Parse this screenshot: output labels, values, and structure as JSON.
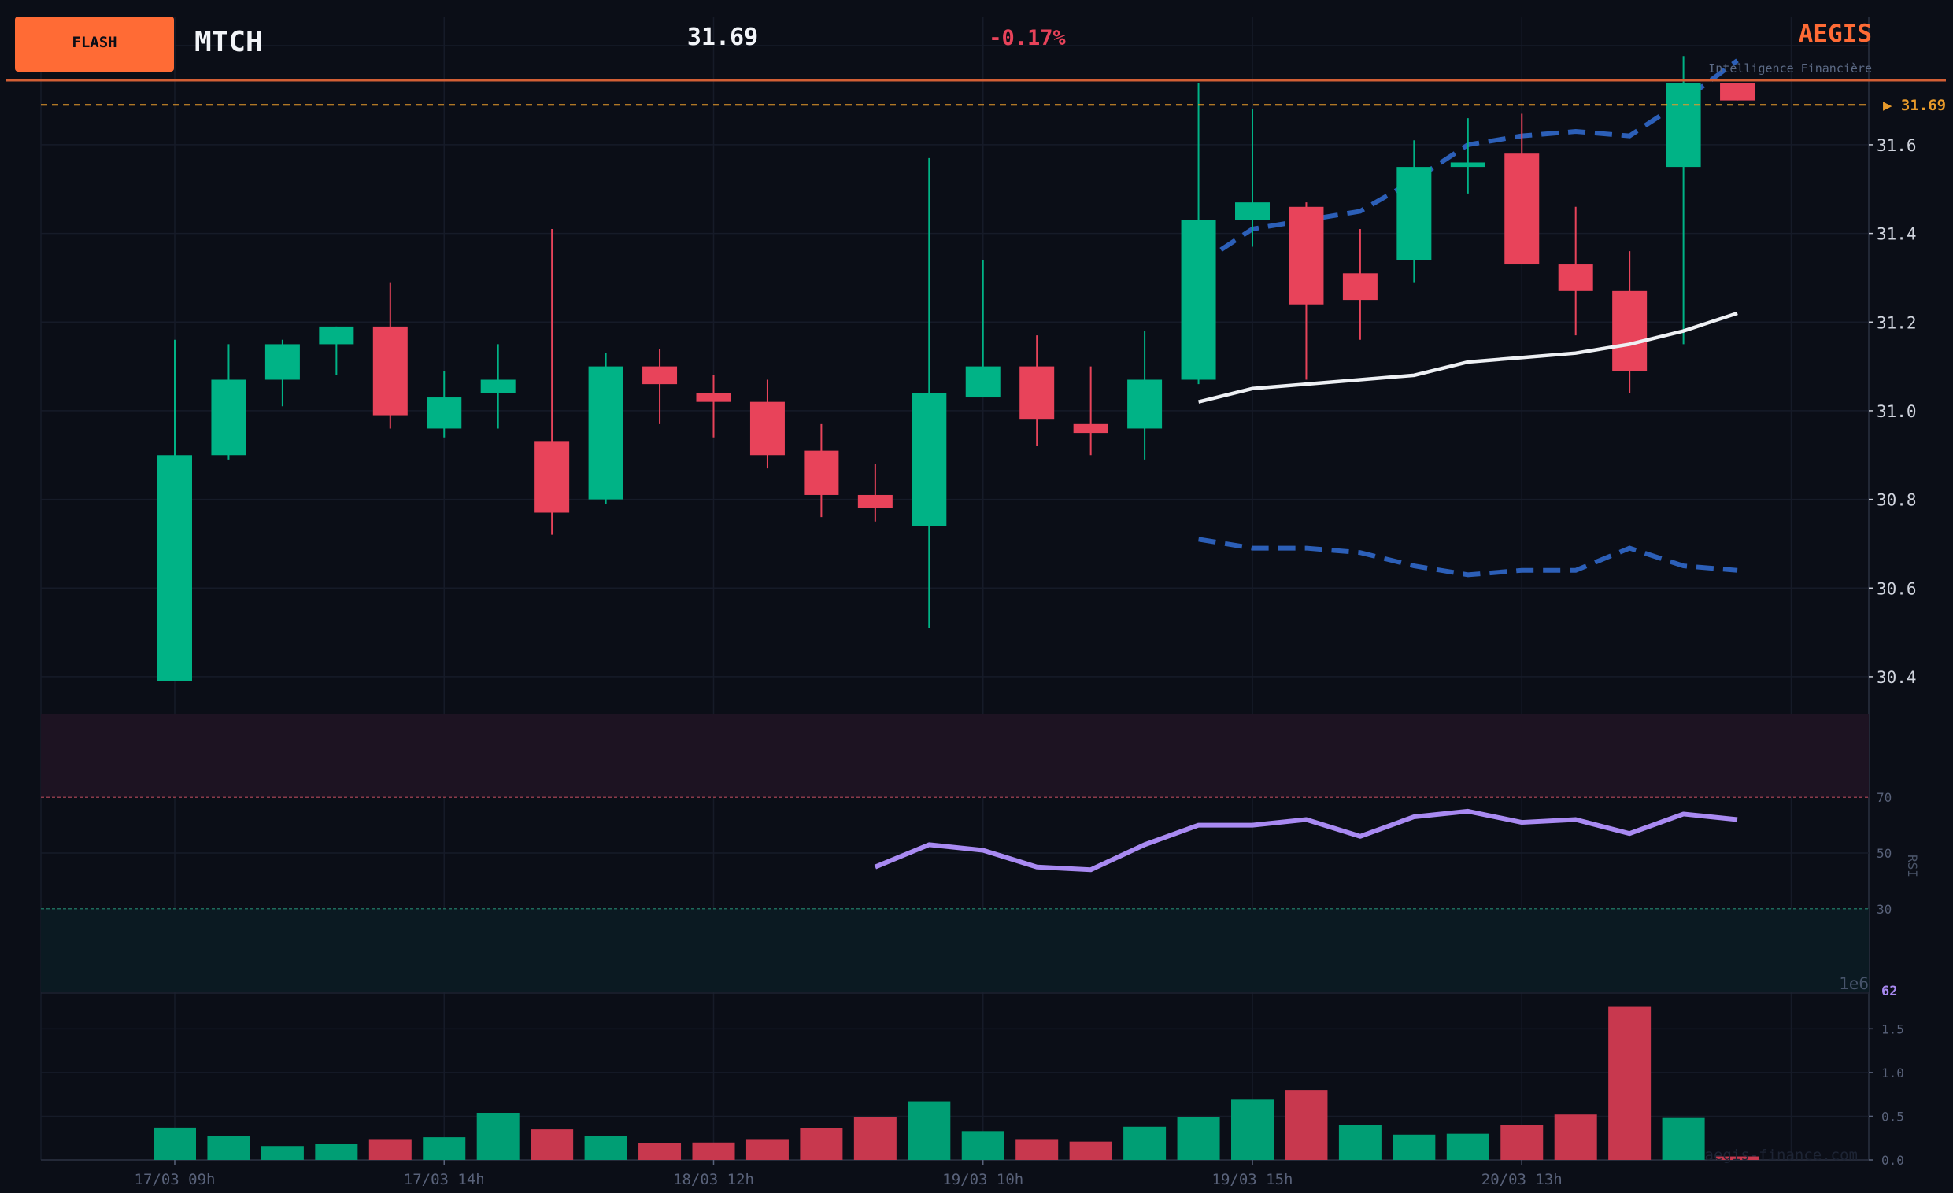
{
  "header": {
    "badge": "FLASH",
    "ticker": "MTCH",
    "price": "31.69",
    "change": "-0.17%",
    "brand": "AEGIS",
    "brand_subtitle": "Intelligence Financière",
    "price_marker": "▶ 31.69",
    "watermark": "aegis-finance.com"
  },
  "colors": {
    "background": "#0b0e17",
    "up": "#00b386",
    "down": "#e8435a",
    "up_volume": "#009e74",
    "down_volume": "#c8384e",
    "bollinger": "#2c5fb8",
    "sma": "#eef0f4",
    "rsi": "#a98af2",
    "accent": "#ff6b35",
    "price_line": "#e89a2a",
    "axis_text": "#d0d4de",
    "muted_text": "#596377"
  },
  "chart_data": [
    {
      "type": "candlestick",
      "x": [
        "17/03 09h",
        "17/03 10h",
        "17/03 11h",
        "17/03 12h",
        "17/03 13h",
        "17/03 14h",
        "17/03 15h",
        "18/03 09h",
        "18/03 10h",
        "18/03 11h",
        "18/03 12h",
        "18/03 13h",
        "18/03 14h",
        "18/03 15h",
        "19/03 09h",
        "19/03 10h",
        "19/03 11h",
        "19/03 12h",
        "19/03 13h",
        "19/03 14h",
        "19/03 15h",
        "20/03 09h",
        "20/03 10h",
        "20/03 11h",
        "20/03 12h",
        "20/03 13h",
        "20/03 14h",
        "20/03 15h",
        "21/03 09h",
        "21/03 10h"
      ],
      "open": [
        30.39,
        30.9,
        31.07,
        31.15,
        31.19,
        30.96,
        31.04,
        30.93,
        30.8,
        31.1,
        31.04,
        31.02,
        30.91,
        30.81,
        30.74,
        31.03,
        31.1,
        30.97,
        30.96,
        31.07,
        31.43,
        31.46,
        31.31,
        31.34,
        31.55,
        31.58,
        31.33,
        31.27,
        31.55,
        31.74
      ],
      "high": [
        31.16,
        31.15,
        31.16,
        31.19,
        31.29,
        31.09,
        31.15,
        31.41,
        31.13,
        31.14,
        31.08,
        31.07,
        30.97,
        30.88,
        31.57,
        31.34,
        31.17,
        31.1,
        31.18,
        31.74,
        31.68,
        31.47,
        31.41,
        31.61,
        31.66,
        31.67,
        31.46,
        31.36,
        31.8,
        31.74
      ],
      "low": [
        30.39,
        30.89,
        31.01,
        31.08,
        30.96,
        30.94,
        30.96,
        30.72,
        30.79,
        30.97,
        30.94,
        30.87,
        30.76,
        30.75,
        30.51,
        31.03,
        30.92,
        30.9,
        30.89,
        31.06,
        31.37,
        31.07,
        31.16,
        31.29,
        31.49,
        31.33,
        31.17,
        31.04,
        31.15,
        31.7
      ],
      "close": [
        30.9,
        31.07,
        31.15,
        31.19,
        30.99,
        31.03,
        31.07,
        30.77,
        31.1,
        31.06,
        31.02,
        30.9,
        30.81,
        30.78,
        31.04,
        31.1,
        30.98,
        30.95,
        31.07,
        31.43,
        31.47,
        31.24,
        31.25,
        31.55,
        31.56,
        31.33,
        31.27,
        31.09,
        31.74,
        31.7
      ],
      "price_axis": {
        "ticks": [
          30.4,
          30.6,
          30.8,
          31.0,
          31.2,
          31.4,
          31.6
        ],
        "range": [
          30.32,
          31.82
        ]
      },
      "overlays": {
        "bollinger_upper": {
          "start_index": 19,
          "values": [
            31.33,
            31.41,
            31.43,
            31.45,
            31.52,
            31.6,
            31.62,
            31.63,
            31.62,
            31.7,
            31.79
          ]
        },
        "bollinger_lower": {
          "start_index": 19,
          "values": [
            30.71,
            30.69,
            30.69,
            30.68,
            30.65,
            30.63,
            30.64,
            30.64,
            30.69,
            30.65,
            30.64
          ]
        },
        "sma": {
          "start_index": 19,
          "values": [
            31.02,
            31.05,
            31.06,
            31.07,
            31.08,
            31.11,
            31.12,
            31.13,
            31.15,
            31.18,
            31.22
          ]
        }
      },
      "last_price_line": 31.69
    },
    {
      "type": "line",
      "ylabel": "RSI",
      "start_index": 13,
      "values": [
        45,
        53,
        51,
        45,
        44,
        53,
        60,
        60,
        62,
        56,
        63,
        65,
        61,
        62,
        57,
        64,
        62
      ],
      "levels": [
        70,
        50,
        30
      ],
      "last_value_label": "62",
      "range": [
        0,
        100
      ]
    },
    {
      "type": "bar",
      "scale_label": "1e6",
      "ticks": [
        0.0,
        0.5,
        1.0,
        1.5
      ],
      "values": [
        0.37,
        0.27,
        0.16,
        0.18,
        0.23,
        0.26,
        0.54,
        0.35,
        0.27,
        0.19,
        0.2,
        0.23,
        0.36,
        0.49,
        0.67,
        0.33,
        0.23,
        0.21,
        0.38,
        0.49,
        0.69,
        0.8,
        0.4,
        0.29,
        0.3,
        0.4,
        0.52,
        1.75,
        0.48,
        0.04
      ],
      "direction": [
        "up",
        "up",
        "up",
        "up",
        "down",
        "up",
        "up",
        "down",
        "up",
        "down",
        "down",
        "down",
        "down",
        "down",
        "up",
        "up",
        "down",
        "down",
        "up",
        "up",
        "up",
        "down",
        "up",
        "up",
        "up",
        "down",
        "down",
        "down",
        "up",
        "down"
      ]
    }
  ],
  "x_axis": {
    "labels": [
      {
        "index": 0,
        "text": "17/03 09h"
      },
      {
        "index": 5,
        "text": "17/03 14h"
      },
      {
        "index": 10,
        "text": "18/03 12h"
      },
      {
        "index": 15,
        "text": "19/03 10h"
      },
      {
        "index": 20,
        "text": "19/03 15h"
      },
      {
        "index": 25,
        "text": "20/03 13h"
      }
    ]
  }
}
